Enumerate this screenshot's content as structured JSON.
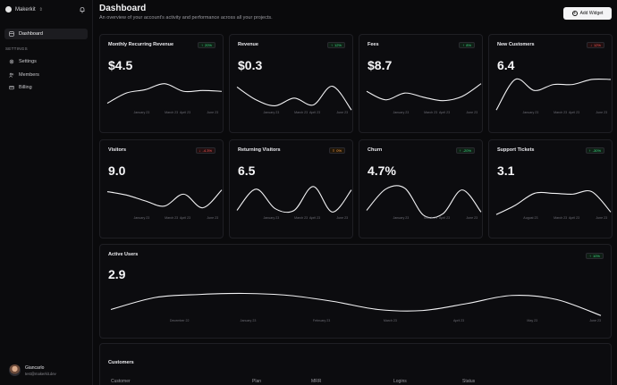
{
  "sidebar": {
    "brand": "Makerkit",
    "nav_active": "Dashboard",
    "section_label": "SETTINGS",
    "items": [
      {
        "label": "Settings",
        "icon": "gear-icon"
      },
      {
        "label": "Members",
        "icon": "members-icon"
      },
      {
        "label": "Billing",
        "icon": "card-icon"
      }
    ],
    "user": {
      "name": "Giancarlo",
      "email": "test@makerkit.dev"
    }
  },
  "header": {
    "title": "Dashboard",
    "subtitle": "An overview of your account's activity and performance across all your projects.",
    "add_widget": "Add Widget"
  },
  "cards": [
    {
      "title": "Monthly Recurring Revenue",
      "value": "$4.5",
      "trend": "20%",
      "dir": "up",
      "ticks": [
        "January 23",
        "March 23",
        "April 23",
        "June 23"
      ],
      "series": [
        1.2,
        2.4,
        2.8,
        3.5,
        2.6,
        2.7,
        2.6
      ]
    },
    {
      "title": "Revenue",
      "value": "$0.3",
      "trend": "12%",
      "dir": "up",
      "ticks": [
        "January 23",
        "March 23",
        "April 23",
        "June 23"
      ],
      "series": [
        3.1,
        1.6,
        0.9,
        1.8,
        1.0,
        3.2,
        0.4
      ]
    },
    {
      "title": "Fees",
      "value": "$8.7",
      "trend": "8%",
      "dir": "up",
      "ticks": [
        "January 23",
        "March 23",
        "April 23",
        "June 23"
      ],
      "series": [
        2.6,
        1.6,
        2.4,
        1.9,
        1.5,
        2.0,
        3.5
      ]
    },
    {
      "title": "New Customers",
      "value": "6.4",
      "trend": "12%",
      "dir": "down",
      "ticks": [
        "January 23",
        "March 23",
        "April 23",
        "June 23"
      ],
      "series": [
        0.4,
        4.0,
        2.7,
        3.4,
        3.4,
        4.0,
        4.0
      ]
    },
    {
      "title": "Visitors",
      "value": "9.0",
      "trend": "-4.3%",
      "dir": "down",
      "ticks": [
        "January 23",
        "March 23",
        "April 23",
        "June 23"
      ],
      "series": [
        3.2,
        2.8,
        2.1,
        1.5,
        2.9,
        1.3,
        3.4
      ]
    },
    {
      "title": "Returning Visitors",
      "value": "6.5",
      "trend": "0%",
      "dir": "flat",
      "ticks": [
        "January 23",
        "March 23",
        "April 23",
        "June 23"
      ],
      "series": [
        1.0,
        3.5,
        1.2,
        1.0,
        3.8,
        0.8,
        3.4
      ]
    },
    {
      "title": "Churn",
      "value": "4.7%",
      "trend": "-20%",
      "dir": "up",
      "ticks": [
        "January 23",
        "March 23",
        "April 23",
        "June 23"
      ],
      "series": [
        1.0,
        3.5,
        3.6,
        0.4,
        0.6,
        3.4,
        0.8
      ]
    },
    {
      "title": "Support Tickets",
      "value": "3.1",
      "trend": "-30%",
      "dir": "up",
      "ticks": [
        "August 23",
        "March 23",
        "April 23",
        "June 23"
      ],
      "series": [
        0.5,
        1.6,
        3.0,
        3.0,
        2.9,
        3.2,
        0.8
      ]
    }
  ],
  "active_users": {
    "title": "Active Users",
    "value": "2.9",
    "trend": "10%",
    "dir": "up",
    "ticks": [
      "December 22",
      "January 23",
      "February 23",
      "March 23",
      "April 23",
      "May 23",
      "June 23"
    ],
    "series": [
      1.2,
      2.4,
      2.7,
      2.8,
      2.6,
      2.0,
      1.2,
      1.1,
      1.8,
      2.6,
      2.2,
      0.6
    ]
  },
  "customers": {
    "title": "Customers",
    "columns": [
      "Customer",
      "Plan",
      "MRR",
      "Logins",
      "Status"
    ]
  },
  "colors": {
    "up": "#3ddc84",
    "down": "#ff5a5a",
    "flat": "#ffa24a",
    "line": "#f2f2f4"
  }
}
